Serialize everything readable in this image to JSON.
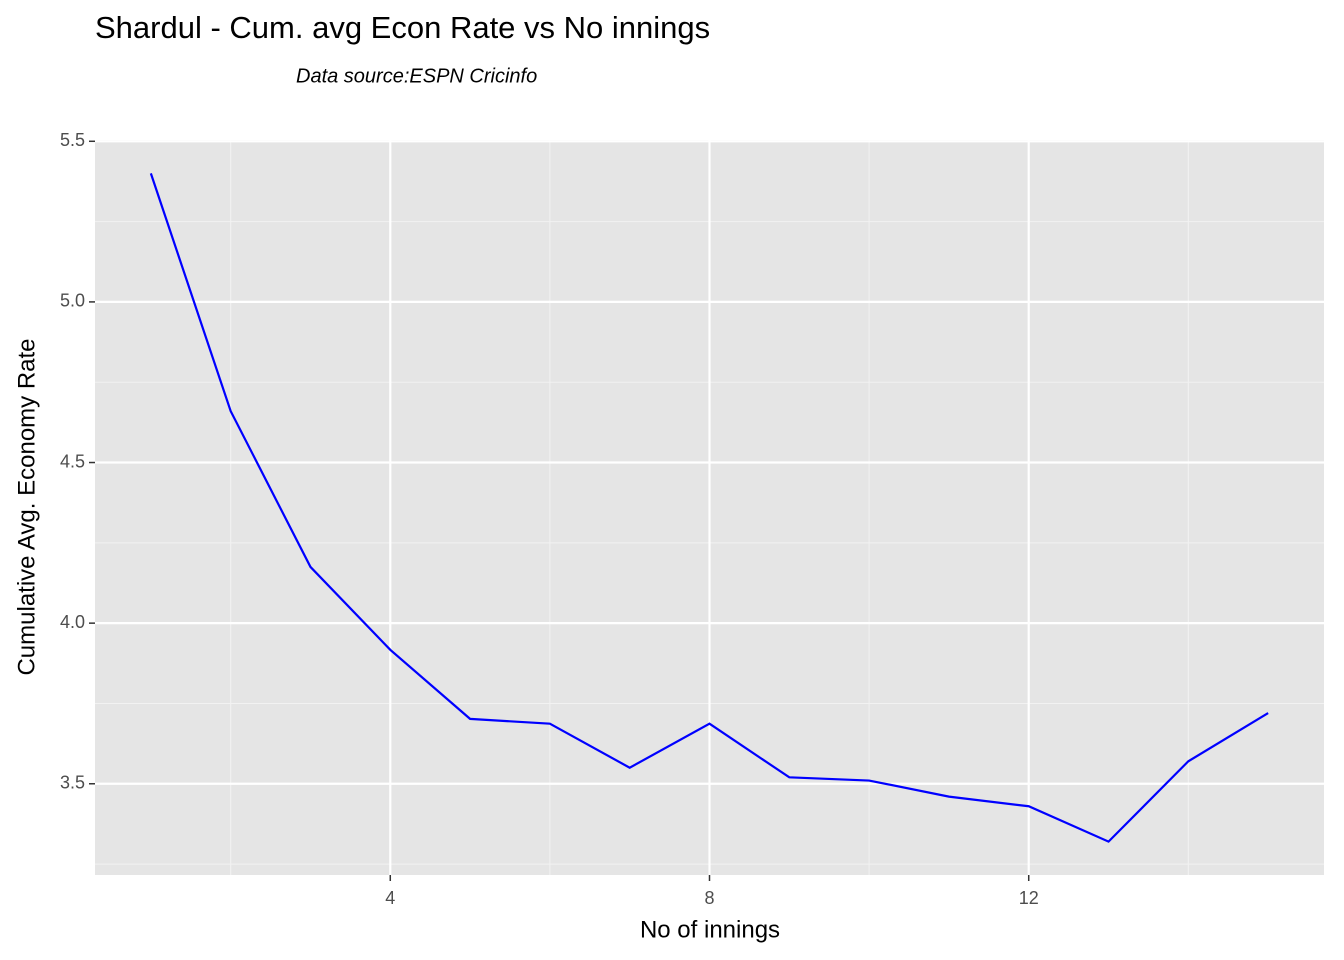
{
  "chart_data": {
    "type": "line",
    "title": "Shardul - Cum. avg Econ Rate vs No innings",
    "subtitle": "Data source:ESPN Cricinfo",
    "x_label": "No of innings",
    "y_label": "Cumulative Avg. Economy Rate",
    "x": [
      1,
      2,
      3,
      4,
      5,
      6,
      7,
      8,
      9,
      10,
      11,
      12,
      13,
      14,
      15
    ],
    "series": [
      {
        "name": "Cumulative Avg. Economy Rate",
        "color": "#0000ff",
        "values": [
          5.4,
          4.66,
          4.175,
          3.917,
          3.702,
          3.687,
          3.55,
          3.687,
          3.52,
          3.51,
          3.46,
          3.43,
          3.32,
          3.57,
          3.72
        ]
      }
    ],
    "xlim": [
      0.3,
      15.7
    ],
    "xticks": [
      4,
      8,
      12
    ],
    "ylim": [
      3.216,
      5.504
    ],
    "yticks": [
      {
        "value": 3.5,
        "label": "3.5"
      },
      {
        "value": 4.0,
        "label": "4.0"
      },
      {
        "value": 4.5,
        "label": "4.5"
      },
      {
        "value": 5.0,
        "label": "5.0"
      },
      {
        "value": 5.5,
        "label": "5.5"
      }
    ],
    "grid": true
  }
}
